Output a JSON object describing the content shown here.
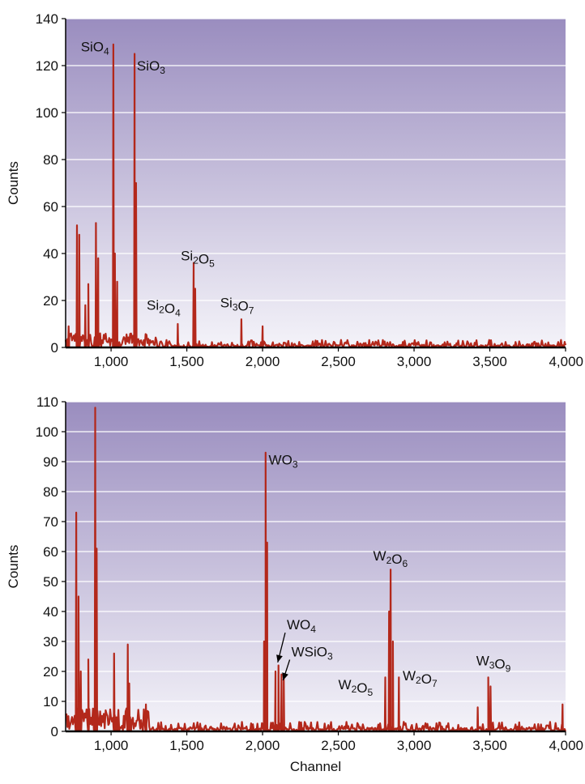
{
  "colors": {
    "trace": "#b3281b",
    "bg_top": "#9a8dbf",
    "bg_bottom": "#f4f3f9",
    "gridline": "#ffffff",
    "axis": "#000000"
  },
  "chart_data": [
    {
      "type": "line",
      "ylabel": "Counts",
      "xlabel": "",
      "xlim": [
        700,
        4000
      ],
      "ylim": [
        0,
        140
      ],
      "grid": true,
      "xticks": [
        1000,
        1500,
        2000,
        2500,
        3000,
        3500,
        4000
      ],
      "xtick_labels": [
        "1,000",
        "1,500",
        "2,000",
        "2,500",
        "3,000",
        "3,500",
        "4,000"
      ],
      "yticks": [
        0,
        20,
        40,
        60,
        80,
        100,
        120,
        140
      ],
      "ytick_labels": [
        "0",
        "20",
        "40",
        "60",
        "80",
        "100",
        "120",
        "140"
      ],
      "peaks": [
        {
          "x": 775,
          "y": 52
        },
        {
          "x": 790,
          "y": 48
        },
        {
          "x": 830,
          "y": 18
        },
        {
          "x": 850,
          "y": 27
        },
        {
          "x": 900,
          "y": 53
        },
        {
          "x": 915,
          "y": 38
        },
        {
          "x": 1015,
          "y": 129
        },
        {
          "x": 1025,
          "y": 40
        },
        {
          "x": 1040,
          "y": 28
        },
        {
          "x": 1155,
          "y": 125
        },
        {
          "x": 1165,
          "y": 70
        },
        {
          "x": 1440,
          "y": 10
        },
        {
          "x": 1545,
          "y": 36
        },
        {
          "x": 1555,
          "y": 25
        },
        {
          "x": 1860,
          "y": 12
        },
        {
          "x": 2000,
          "y": 9
        },
        {
          "x": 720,
          "y": 9
        }
      ],
      "annotations": [
        {
          "base": "SiO",
          "sub": "4",
          "x": 800,
          "y": 126,
          "arrow": false
        },
        {
          "base": "SiO",
          "sub": "3",
          "x": 1170,
          "y": 118,
          "arrow": false
        },
        {
          "base": "Si",
          "sub": "2",
          "base2": "O",
          "sub2": "5",
          "x": 1460,
          "y": 37,
          "arrow": false
        },
        {
          "base": "Si",
          "sub": "2",
          "base2": "O",
          "sub2": "4",
          "x": 1235,
          "y": 16,
          "arrow": false
        },
        {
          "base": "Si",
          "sub": "3",
          "base2": "O",
          "sub2": "7",
          "x": 1720,
          "y": 17,
          "arrow": false
        }
      ]
    },
    {
      "type": "line",
      "ylabel": "Counts",
      "xlabel": "Channel",
      "xlim": [
        700,
        4000
      ],
      "ylim": [
        0,
        110
      ],
      "grid": true,
      "xticks": [
        1000,
        1500,
        2000,
        2500,
        3000,
        3500,
        4000
      ],
      "xtick_labels": [
        "1,000",
        "1,500",
        "2,000",
        "2,500",
        "3,000",
        "3,500",
        "4,000"
      ],
      "yticks": [
        0,
        10,
        20,
        30,
        40,
        50,
        60,
        70,
        80,
        90,
        100,
        110
      ],
      "ytick_labels": [
        "0",
        "10",
        "20",
        "30",
        "40",
        "50",
        "60",
        "70",
        "80",
        "90",
        "100",
        "110"
      ],
      "peaks": [
        {
          "x": 770,
          "y": 73
        },
        {
          "x": 785,
          "y": 45
        },
        {
          "x": 800,
          "y": 20
        },
        {
          "x": 850,
          "y": 24
        },
        {
          "x": 895,
          "y": 108
        },
        {
          "x": 905,
          "y": 61
        },
        {
          "x": 1020,
          "y": 26
        },
        {
          "x": 1110,
          "y": 29
        },
        {
          "x": 1120,
          "y": 16
        },
        {
          "x": 2020,
          "y": 93
        },
        {
          "x": 2030,
          "y": 63
        },
        {
          "x": 2010,
          "y": 30
        },
        {
          "x": 2085,
          "y": 20
        },
        {
          "x": 2105,
          "y": 22
        },
        {
          "x": 2125,
          "y": 19
        },
        {
          "x": 2140,
          "y": 18
        },
        {
          "x": 2810,
          "y": 18
        },
        {
          "x": 2835,
          "y": 40
        },
        {
          "x": 2845,
          "y": 54
        },
        {
          "x": 2860,
          "y": 30
        },
        {
          "x": 2900,
          "y": 18
        },
        {
          "x": 3420,
          "y": 8
        },
        {
          "x": 3490,
          "y": 18
        },
        {
          "x": 3505,
          "y": 15
        },
        {
          "x": 3980,
          "y": 9
        },
        {
          "x": 1230,
          "y": 9
        }
      ],
      "annotations": [
        {
          "base": "WO",
          "sub": "3",
          "x": 2040,
          "y": 89,
          "arrow": false
        },
        {
          "base": "W",
          "sub": "2",
          "base2": "O",
          "sub2": "6",
          "x": 2730,
          "y": 57,
          "arrow": false
        },
        {
          "base": "WO",
          "sub": "4",
          "x": 2160,
          "y": 34,
          "arrow": true,
          "ax": 2100,
          "ay": 23
        },
        {
          "base": "WSiO",
          "sub": "3",
          "x": 2190,
          "y": 25,
          "arrow": true,
          "ax": 2135,
          "ay": 17
        },
        {
          "base": "W",
          "sub": "2",
          "base2": "O",
          "sub2": "5",
          "x": 2500,
          "y": 14,
          "arrow": false
        },
        {
          "base": "W",
          "sub": "2",
          "base2": "O",
          "sub2": "7",
          "x": 2925,
          "y": 17,
          "arrow": false
        },
        {
          "base": "W",
          "sub": "3",
          "base2": "O",
          "sub2": "9",
          "x": 3410,
          "y": 22,
          "arrow": false
        }
      ]
    }
  ]
}
